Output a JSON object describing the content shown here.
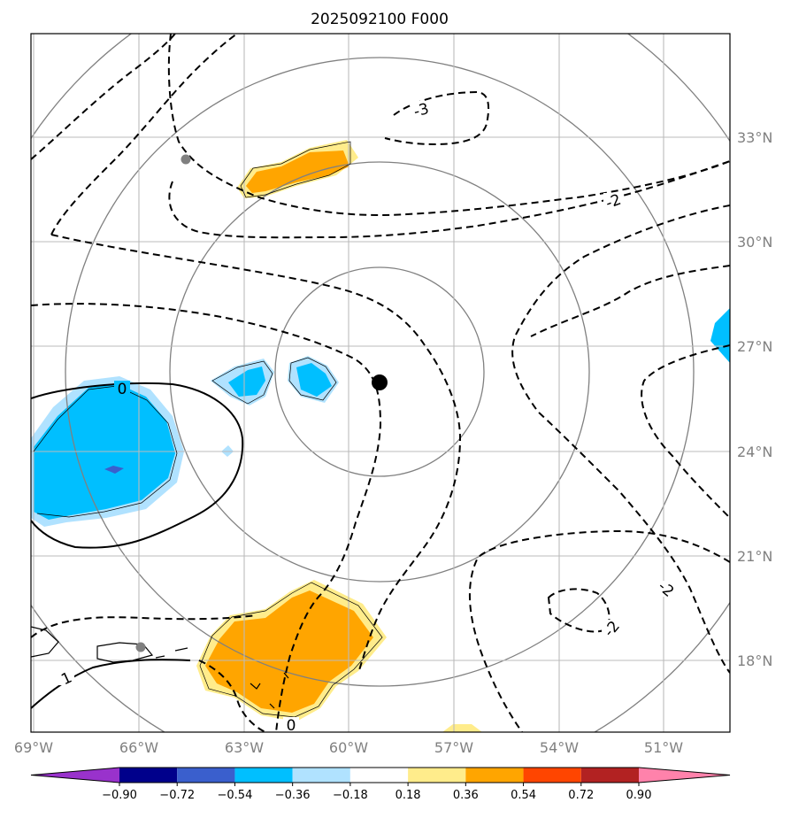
{
  "title": "2025092100 F000",
  "map": {
    "lon_range": [
      -69,
      -49
    ],
    "lat_range": [
      15.8,
      35.7
    ],
    "lon_ticks": [
      "69°W",
      "66°W",
      "63°W",
      "60°W",
      "57°W",
      "54°W",
      "51°W"
    ],
    "lat_ticks": [
      "18°N",
      "21°N",
      "24°N",
      "27°N",
      "30°N",
      "33°N"
    ],
    "storm_center": {
      "lon": -59.0,
      "lat": 25.9,
      "symbol": "black-dot"
    },
    "range_rings_deg": [
      3,
      6,
      9,
      12
    ],
    "gray_markers": [
      "station-dot",
      "station-dot"
    ],
    "contour_labels": [
      "0",
      "1",
      "0",
      "-3",
      "-2",
      "-2",
      "-2"
    ],
    "contour_style": {
      "negative": "dashed",
      "positive": "solid"
    }
  },
  "colorbar": {
    "labels": [
      "−0.90",
      "−0.72",
      "−0.54",
      "−0.36",
      "−0.18",
      "0.18",
      "0.36",
      "0.54",
      "0.72",
      "0.90"
    ],
    "colors": [
      "#9932cc",
      "#00008b",
      "#3a5fcd",
      "#00bfff",
      "#b0e2ff",
      "#ffffff",
      "#ffec8b",
      "#ffa500",
      "#ff4500",
      "#b22222",
      "#ff82ab"
    ]
  }
}
